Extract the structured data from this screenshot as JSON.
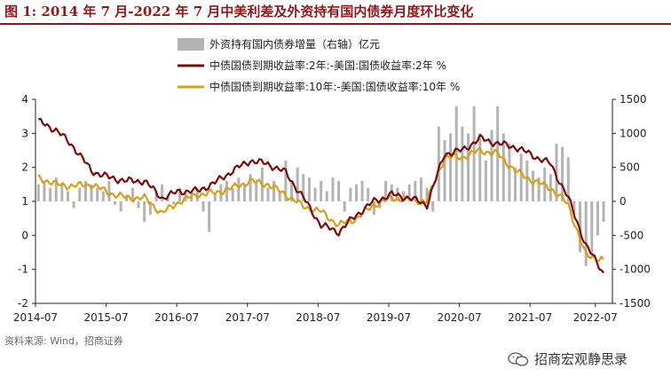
{
  "title": "图 1:  2014 年 7 月-2022 年 7 月中美利差及外资持有国内债券月度环比变化",
  "source": "资料来源:  Wind，招商证券",
  "watermark": "招商宏观静思录",
  "colors": {
    "bars": "#b3b3b3",
    "spread2y": "#7b0a0a",
    "spread10y": "#d4a017",
    "title": "#8b1a1a"
  },
  "chart_data": {
    "type": "bar+line",
    "x_ticks": [
      "2014-07",
      "2015-07",
      "2016-07",
      "2017-07",
      "2018-07",
      "2019-07",
      "2020-07",
      "2021-07",
      "2022-07"
    ],
    "y_left": {
      "ticks": [
        -2,
        -1,
        0,
        1,
        2,
        3,
        4
      ],
      "range": [
        -2,
        4
      ],
      "unit": "%"
    },
    "y_right": {
      "ticks": [
        -1500,
        -1000,
        -500,
        0,
        500,
        1000,
        1500
      ],
      "range": [
        -1500,
        1500
      ],
      "unit": "亿元"
    },
    "legend": [
      {
        "label": "外资持有国内债券增量（右轴）亿元",
        "kind": "bar",
        "color": "#b3b3b3"
      },
      {
        "label": "中债国债到期收益率:2年:-美国:国债收益率:2年 %",
        "kind": "line",
        "color": "#7b0a0a"
      },
      {
        "label": "中债国债到期收益率:10年:-美国:国债收益率:10年 %",
        "kind": "line",
        "color": "#d4a017"
      }
    ],
    "series": [
      {
        "name": "外资持有国内债券增量（右轴）亿元",
        "axis": "right",
        "x": [
          "2014-07",
          "2014-08",
          "2014-09",
          "2014-10",
          "2014-11",
          "2014-12",
          "2015-01",
          "2015-02",
          "2015-03",
          "2015-04",
          "2015-05",
          "2015-06",
          "2015-07",
          "2015-08",
          "2015-09",
          "2015-10",
          "2015-11",
          "2015-12",
          "2016-01",
          "2016-02",
          "2016-03",
          "2016-04",
          "2016-05",
          "2016-06",
          "2016-07",
          "2016-08",
          "2016-09",
          "2016-10",
          "2016-11",
          "2016-12",
          "2017-01",
          "2017-02",
          "2017-03",
          "2017-04",
          "2017-05",
          "2017-06",
          "2017-07",
          "2017-08",
          "2017-09",
          "2017-10",
          "2017-11",
          "2017-12",
          "2018-01",
          "2018-02",
          "2018-03",
          "2018-04",
          "2018-05",
          "2018-06",
          "2018-07",
          "2018-08",
          "2018-09",
          "2018-10",
          "2018-11",
          "2018-12",
          "2019-01",
          "2019-02",
          "2019-03",
          "2019-04",
          "2019-05",
          "2019-06",
          "2019-07",
          "2019-08",
          "2019-09",
          "2019-10",
          "2019-11",
          "2019-12",
          "2020-01",
          "2020-02",
          "2020-03",
          "2020-04",
          "2020-05",
          "2020-06",
          "2020-07",
          "2020-08",
          "2020-09",
          "2020-10",
          "2020-11",
          "2020-12",
          "2021-01",
          "2021-02",
          "2021-03",
          "2021-04",
          "2021-05",
          "2021-06",
          "2021-07",
          "2021-08",
          "2021-09",
          "2021-10",
          "2021-11",
          "2021-12",
          "2022-01",
          "2022-02",
          "2022-03",
          "2022-04",
          "2022-05",
          "2022-06",
          "2022-07"
        ],
        "values": [
          250,
          300,
          200,
          350,
          250,
          150,
          -100,
          200,
          300,
          250,
          200,
          150,
          300,
          -50,
          -150,
          100,
          200,
          -100,
          -300,
          -200,
          150,
          250,
          100,
          -50,
          200,
          150,
          100,
          200,
          -150,
          -450,
          100,
          250,
          300,
          200,
          350,
          250,
          400,
          300,
          500,
          200,
          300,
          150,
          600,
          300,
          500,
          400,
          350,
          200,
          300,
          150,
          350,
          300,
          -150,
          200,
          250,
          300,
          200,
          -200,
          -100,
          300,
          250,
          200,
          150,
          250,
          300,
          350,
          200,
          -150,
          1100,
          900,
          1000,
          1400,
          1100,
          1000,
          1400,
          950,
          600,
          1050,
          1400,
          1000,
          850,
          500,
          700,
          600,
          450,
          350,
          500,
          400,
          850,
          800,
          650,
          -200,
          -750,
          -950,
          -800,
          -500,
          -300
        ]
      },
      {
        "name": "中债国债到期收益率:2年:-美国:国债收益率:2年 %",
        "axis": "left",
        "x": [
          "2014-07",
          "2014-10",
          "2015-01",
          "2015-04",
          "2015-07",
          "2015-10",
          "2016-01",
          "2016-04",
          "2016-07",
          "2016-10",
          "2017-01",
          "2017-04",
          "2017-07",
          "2017-10",
          "2018-01",
          "2018-04",
          "2018-07",
          "2018-10",
          "2019-01",
          "2019-04",
          "2019-07",
          "2019-10",
          "2020-01",
          "2020-04",
          "2020-07",
          "2020-10",
          "2021-01",
          "2021-04",
          "2021-07",
          "2021-10",
          "2022-01",
          "2022-04",
          "2022-07"
        ],
        "values": [
          3.35,
          3.1,
          2.6,
          1.9,
          1.7,
          1.6,
          1.6,
          1.1,
          1.3,
          1.3,
          1.55,
          1.9,
          2.2,
          2.1,
          1.85,
          1.1,
          0.3,
          0.1,
          0.6,
          1.0,
          1.2,
          1.1,
          0.9,
          2.4,
          2.5,
          2.85,
          2.7,
          2.6,
          2.35,
          2.1,
          1.1,
          -0.3,
          -1.1
        ]
      },
      {
        "name": "中债国债到期收益率:10年:-美国:国债收益率:10年 %",
        "axis": "left",
        "x": [
          "2014-07",
          "2014-10",
          "2015-01",
          "2015-04",
          "2015-07",
          "2015-10",
          "2016-01",
          "2016-04",
          "2016-07",
          "2016-10",
          "2017-01",
          "2017-04",
          "2017-07",
          "2017-10",
          "2018-01",
          "2018-04",
          "2018-07",
          "2018-10",
          "2019-01",
          "2019-04",
          "2019-07",
          "2019-10",
          "2020-01",
          "2020-04",
          "2020-07",
          "2020-10",
          "2021-01",
          "2021-04",
          "2021-07",
          "2021-10",
          "2022-01",
          "2022-04",
          "2022-07"
        ],
        "values": [
          1.7,
          1.5,
          1.45,
          1.5,
          1.25,
          1.1,
          1.1,
          0.65,
          1.0,
          1.2,
          1.25,
          1.4,
          1.6,
          1.5,
          1.2,
          0.85,
          0.7,
          0.3,
          0.5,
          0.9,
          1.1,
          1.05,
          1.0,
          2.3,
          2.3,
          2.5,
          2.4,
          1.9,
          1.6,
          1.4,
          0.9,
          -0.6,
          -0.7
        ]
      }
    ]
  }
}
